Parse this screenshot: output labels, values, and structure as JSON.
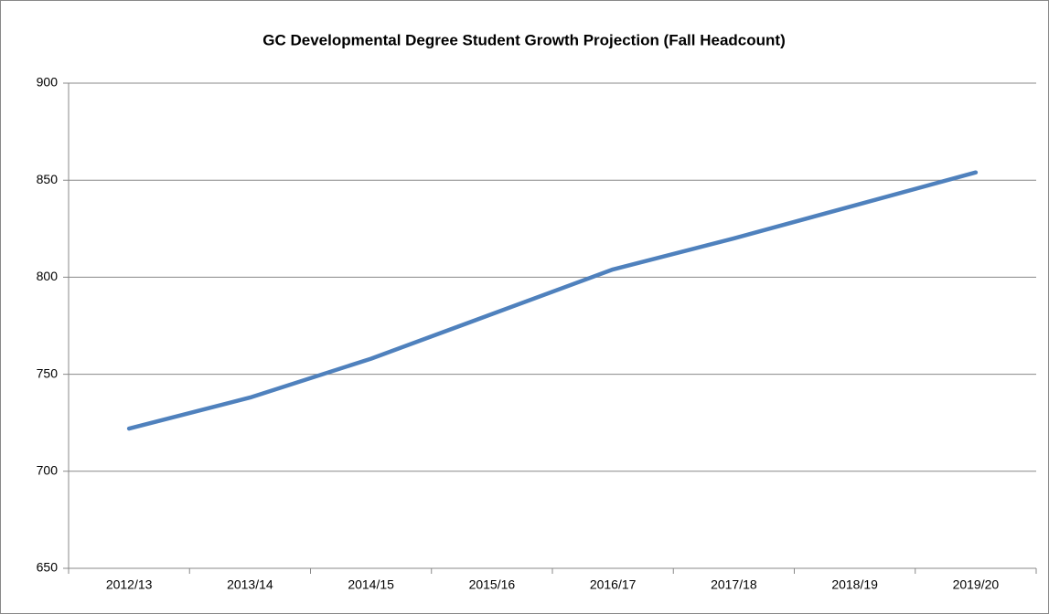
{
  "chart_data": {
    "type": "line",
    "title": "GC Developmental Degree Student Growth Projection (Fall Headcount)",
    "categories": [
      "2012/13",
      "2013/14",
      "2014/15",
      "2015/16",
      "2016/17",
      "2017/18",
      "2018/19",
      "2019/20"
    ],
    "series": [
      {
        "name": "Fall Headcount",
        "color": "#4f81bd",
        "values": [
          722,
          738,
          758,
          781,
          804,
          820,
          837,
          854
        ]
      }
    ],
    "ylim": [
      650,
      900
    ],
    "yticks": [
      650,
      700,
      750,
      800,
      850,
      900
    ],
    "grid": true
  }
}
